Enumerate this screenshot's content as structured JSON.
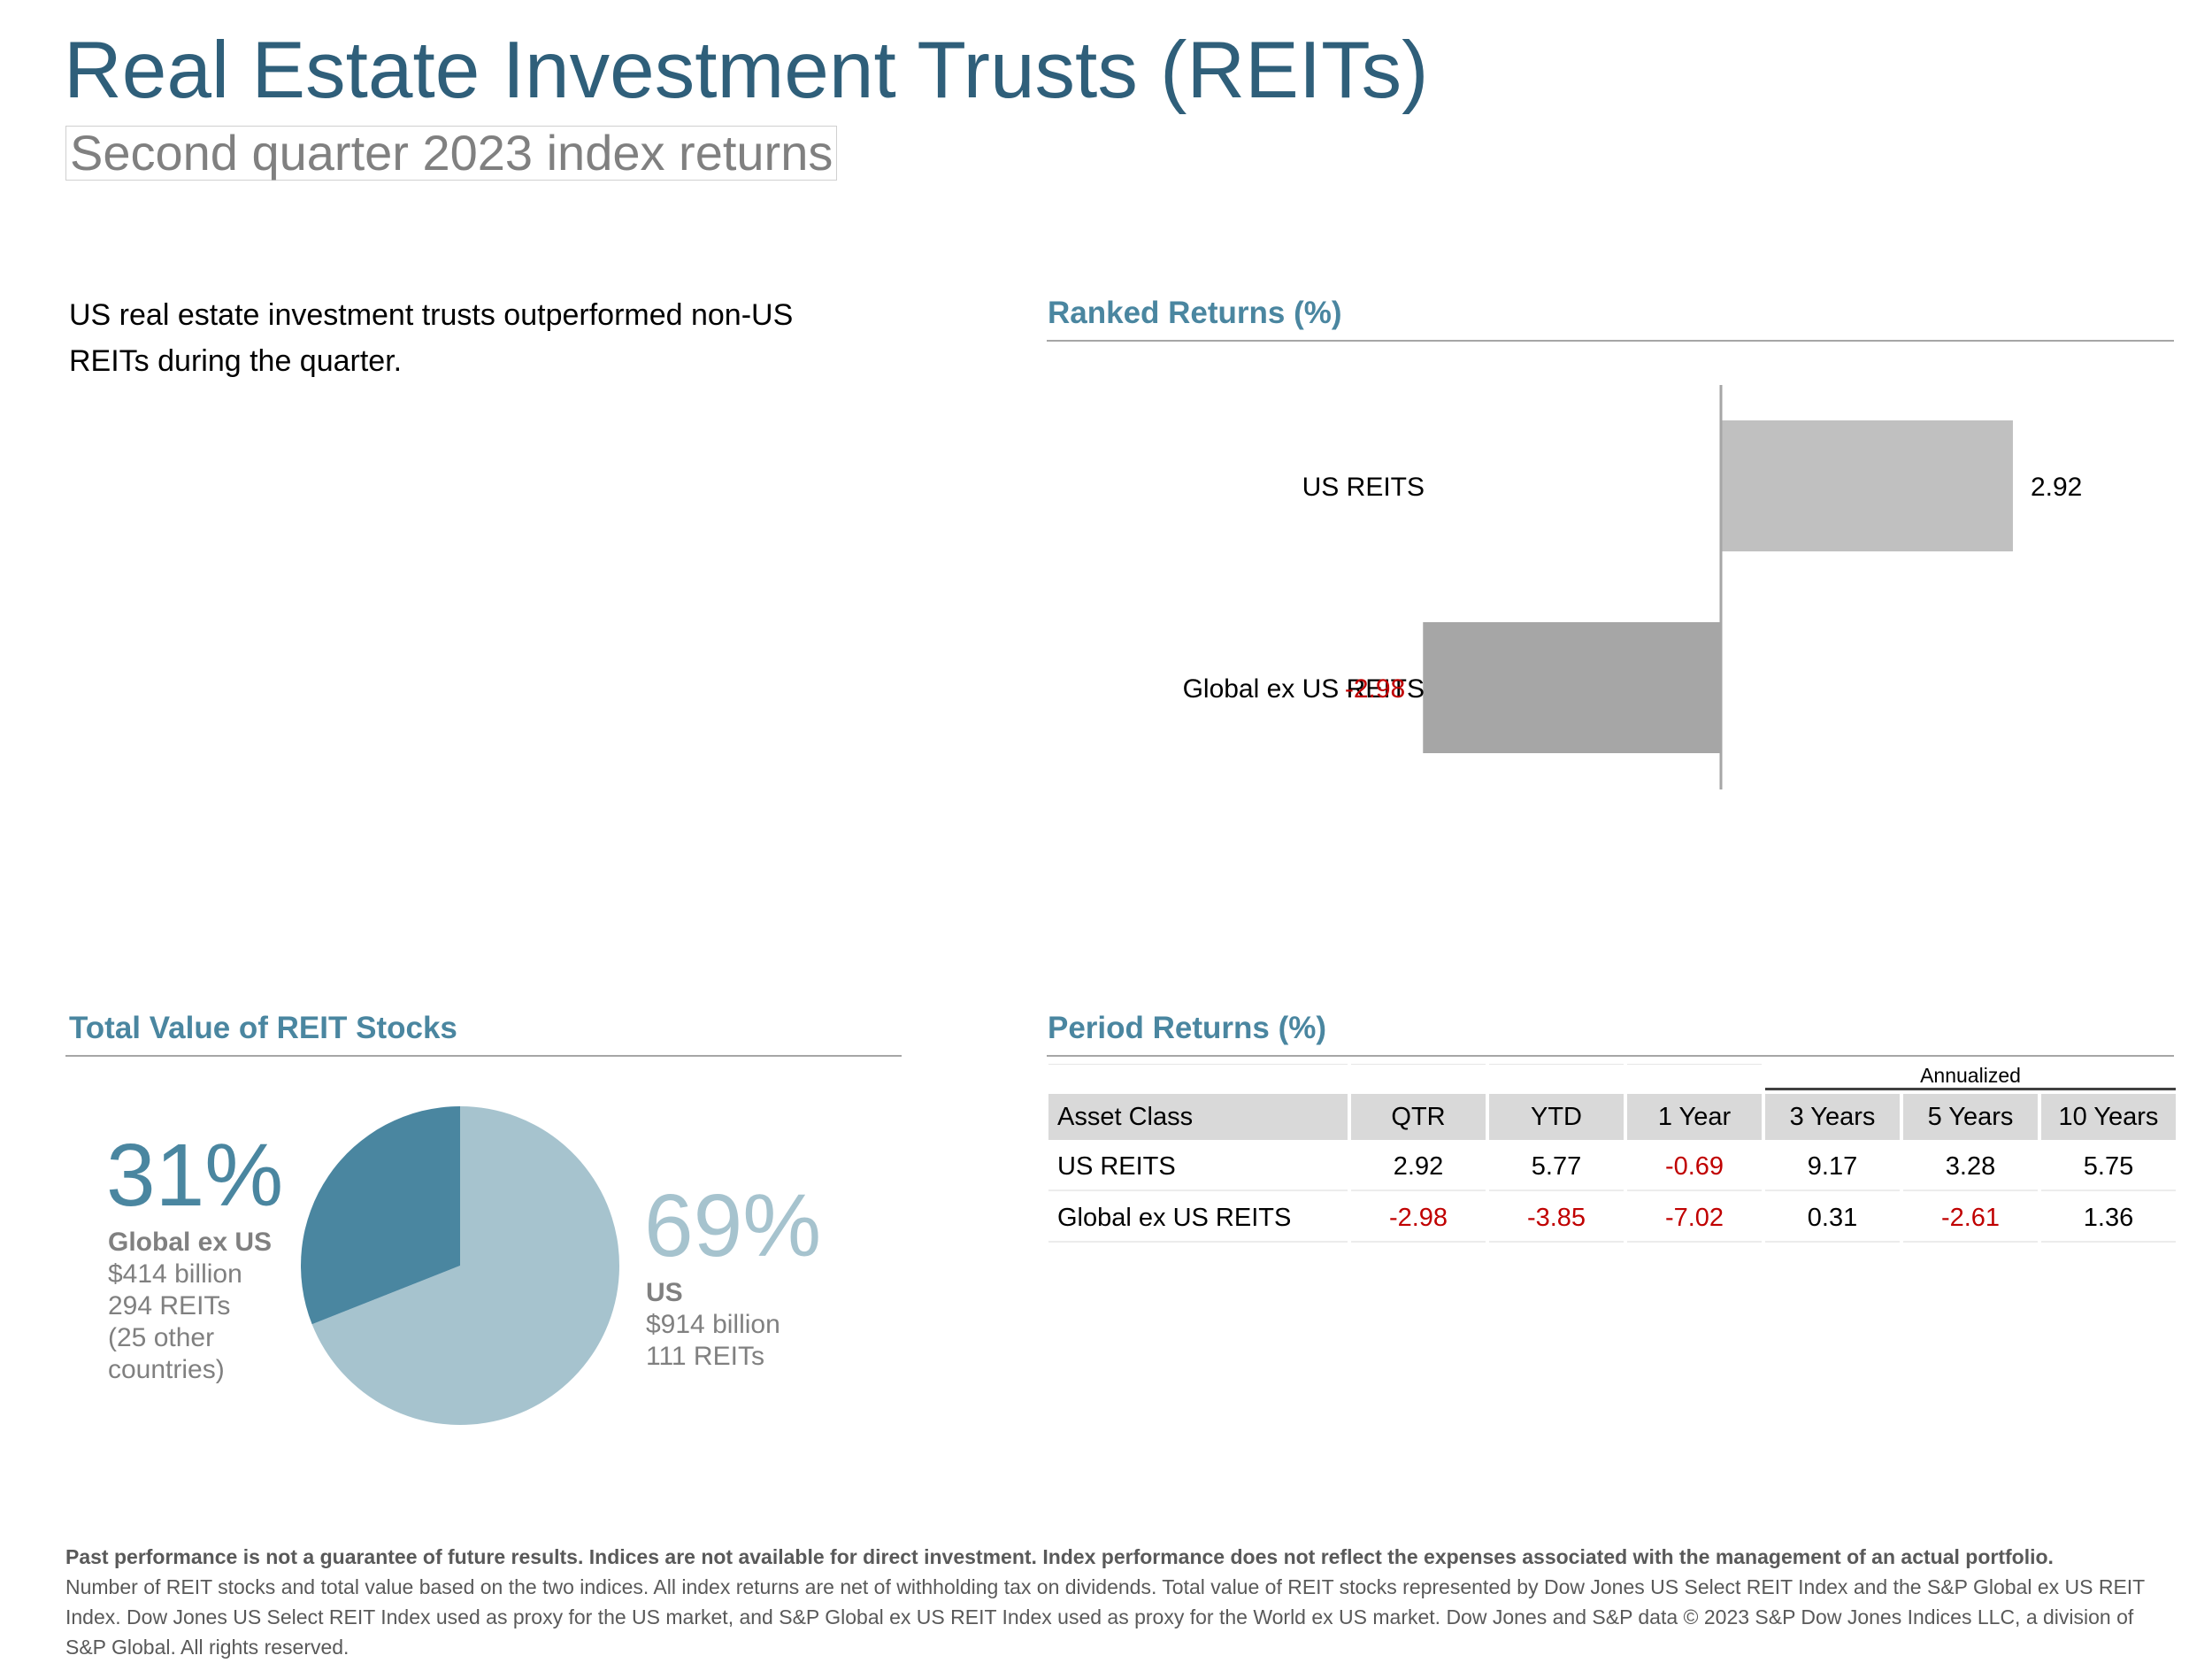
{
  "header": {
    "title": "Real Estate Investment Trusts (REITs)",
    "subtitle": "Second quarter 2023 index returns"
  },
  "intro": "US real estate investment trusts outperformed non-US REITs during the quarter.",
  "colors": {
    "title": "#2f5f7a",
    "section": "#4a86a0",
    "negative": "#c00000",
    "bar_pos": "#c0c0c0",
    "bar_neg": "#a6a6a6",
    "pie_us": "#a6c3ce",
    "pie_global": "#4a86a0"
  },
  "ranked": {
    "title": "Ranked Returns (%)"
  },
  "pie": {
    "title": "Total Value of REIT Stocks",
    "global": {
      "pct": "31%",
      "name": "Global ex US",
      "value": "$414 billion",
      "count": "294 REITs",
      "note": "(25 other countries)"
    },
    "us": {
      "pct": "69%",
      "name": "US",
      "value": "$914 billion",
      "count": "111 REITs"
    }
  },
  "period": {
    "title": "Period Returns (%)",
    "annualized_label": "Annualized",
    "headers": [
      "Asset Class",
      "QTR",
      "YTD",
      "1 Year",
      "3 Years",
      "5 Years",
      "10 Years"
    ],
    "rows": [
      {
        "name": "US REITS",
        "values": [
          "2.92",
          "5.77",
          "-0.69",
          "9.17",
          "3.28",
          "5.75"
        ]
      },
      {
        "name": "Global ex US REITS",
        "values": [
          "-2.98",
          "-3.85",
          "-7.02",
          "0.31",
          "-2.61",
          "1.36"
        ]
      }
    ]
  },
  "footer": {
    "bold": "Past performance is not a guarantee of future results. Indices are not available for direct investment. Index performance does not reflect the expenses associated with the management of an actual portfolio.",
    "text": "Number of REIT stocks and total value based on the two indices. All index returns are net of withholding tax on dividends. Total value of REIT stocks represented by Dow Jones US Select REIT Index and the S&P Global ex US REIT Index. Dow Jones US Select REIT Index used as proxy for the US market, and S&P Global ex US REIT Index used as proxy for the World ex US market. Dow Jones and S&P data © 2023 S&P Dow Jones Indices LLC, a division of S&P Global. All rights reserved."
  },
  "chart_data": [
    {
      "type": "bar",
      "orientation": "horizontal",
      "title": "Ranked Returns (%)",
      "categories": [
        "US REITS",
        "Global ex US REITS"
      ],
      "values": [
        2.92,
        -2.98
      ],
      "labels": [
        "2.92",
        "-2.98"
      ],
      "xlim": [
        -5,
        5
      ],
      "grid": false
    },
    {
      "type": "pie",
      "title": "Total Value of REIT Stocks",
      "categories": [
        "US",
        "Global ex US"
      ],
      "values": [
        69,
        31
      ],
      "start": "top",
      "direction": "clockwise"
    }
  ]
}
